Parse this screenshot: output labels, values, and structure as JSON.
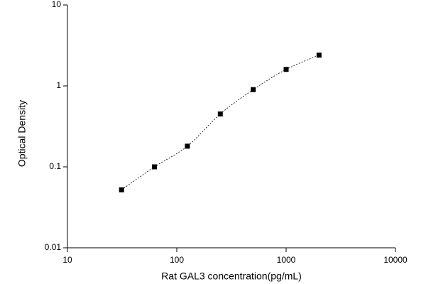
{
  "chart_data": {
    "type": "scatter",
    "x_label": "Rat GAL3 concentration(pg/mL)",
    "y_label": "Optical Density",
    "xlog": true,
    "ylog": true,
    "xlim": [
      10,
      10000
    ],
    "ylim": [
      0.01,
      10
    ],
    "xticks": [
      10,
      100,
      1000,
      10000
    ],
    "yticks": [
      0.01,
      0.1,
      1,
      10
    ],
    "series": [
      {
        "color": "#000000",
        "x": [
          31.25,
          62.5,
          125,
          250,
          500,
          1000,
          2000
        ],
        "values": [
          0.052,
          0.1,
          0.18,
          0.45,
          0.9,
          1.6,
          2.4
        ]
      }
    ]
  }
}
